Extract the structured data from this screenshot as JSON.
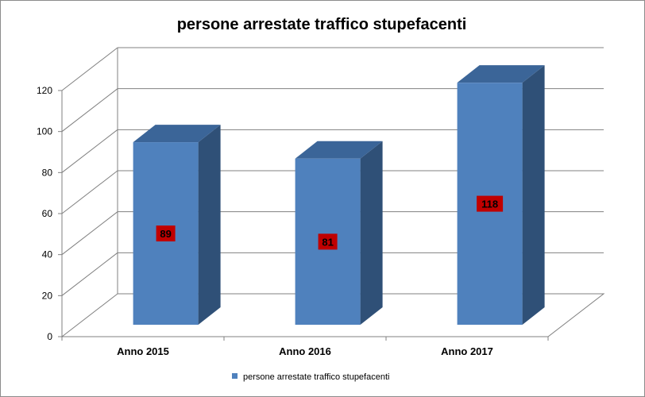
{
  "chart_data": {
    "type": "bar",
    "title": "persone arrestate  traffico stupefacenti",
    "categories": [
      "Anno 2015",
      "Anno 2016",
      "Anno 2017"
    ],
    "series": [
      {
        "name": "persone arrestate  traffico stupefacenti",
        "values": [
          89,
          81,
          118
        ]
      }
    ],
    "data_labels": [
      "89",
      "81",
      "118"
    ],
    "ylim": [
      0,
      120
    ],
    "yticks": [
      0,
      20,
      40,
      60,
      80,
      100,
      120
    ],
    "ytick_labels": [
      "0",
      "20",
      "40",
      "60",
      "80",
      "100",
      "120"
    ],
    "grid": true,
    "legend_position": "bottom",
    "colors": {
      "bar_front": "#4f81bd",
      "bar_side": "#2f5077",
      "bar_top": "#3b6598",
      "label_bg": "#c00000",
      "grid": "#808080"
    }
  }
}
